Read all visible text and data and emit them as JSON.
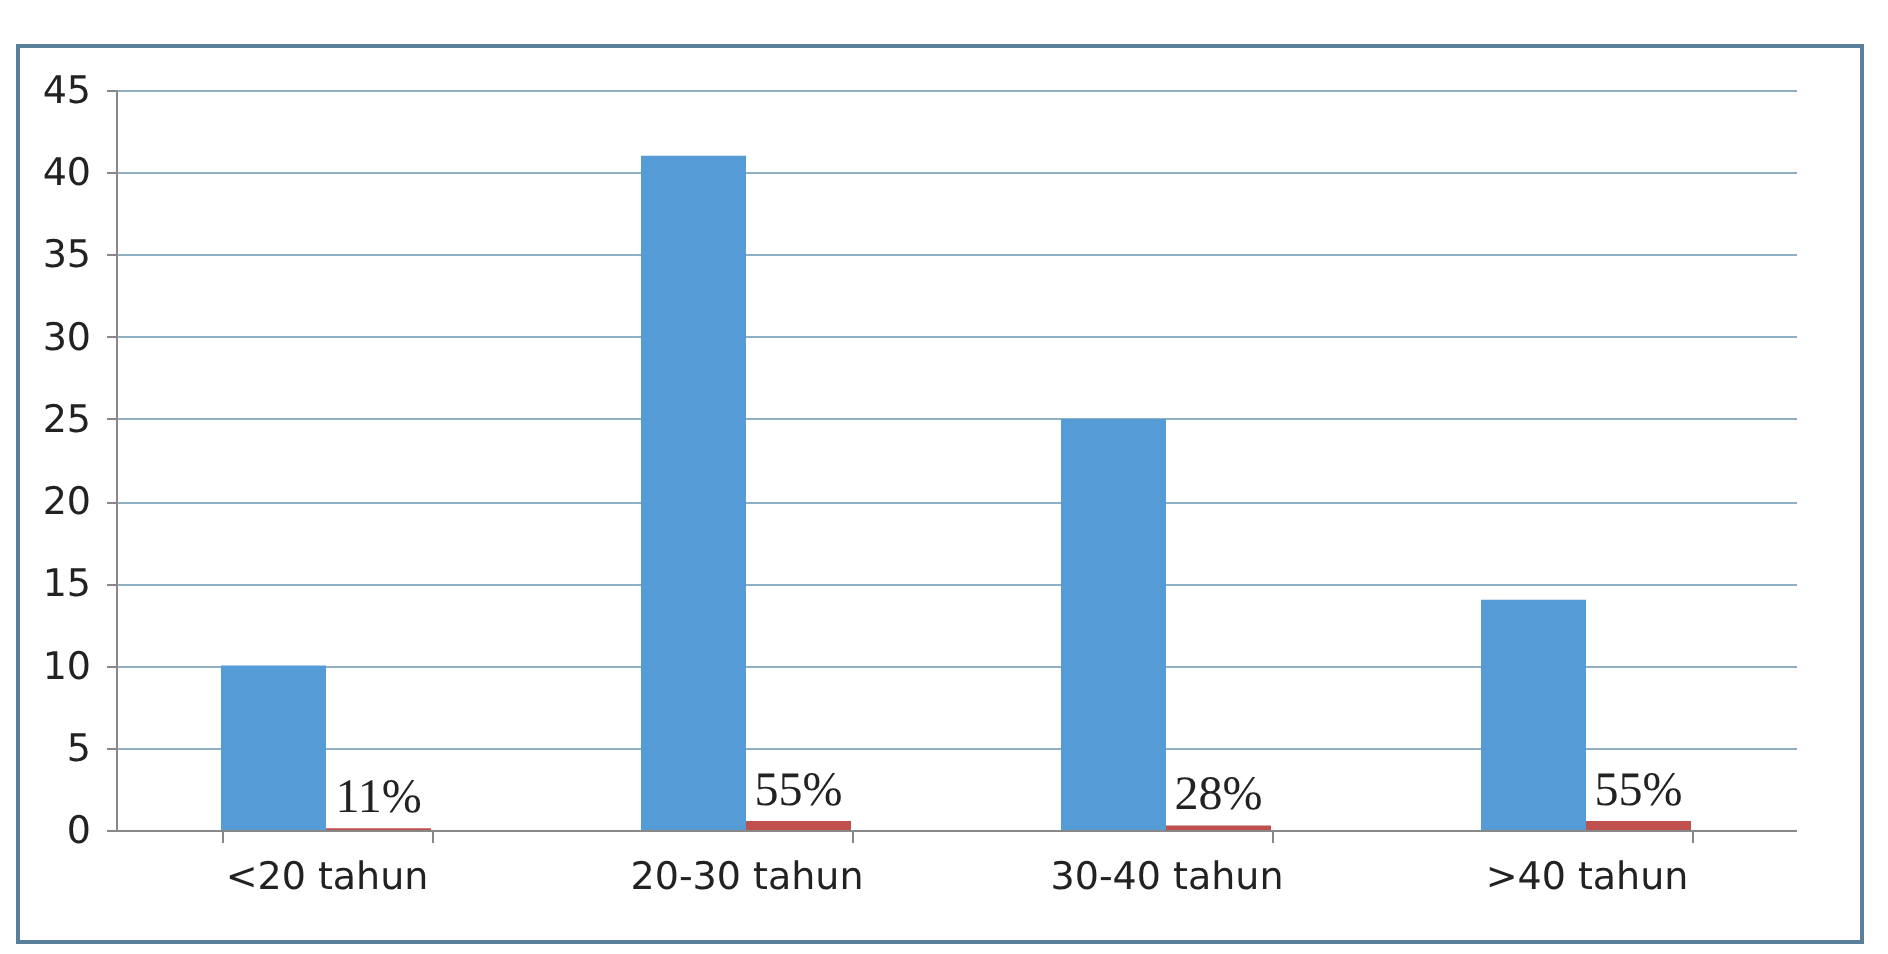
{
  "chart_data": {
    "type": "bar",
    "categories": [
      "<20 tahun",
      "20-30 tahun",
      "30-40 tahun",
      ">40 tahun"
    ],
    "series": [
      {
        "color": "#559bd6",
        "values": [
          10,
          41,
          25,
          14
        ]
      },
      {
        "color": "#c0504d",
        "values": [
          0.11,
          0.55,
          0.28,
          0.55
        ],
        "value_labels": [
          "11%",
          "55%",
          "28%",
          "55%"
        ]
      }
    ],
    "ylim": [
      0,
      45
    ],
    "yticks": [
      0,
      5,
      10,
      15,
      20,
      25,
      30,
      35,
      40,
      45
    ],
    "grid": "y"
  }
}
